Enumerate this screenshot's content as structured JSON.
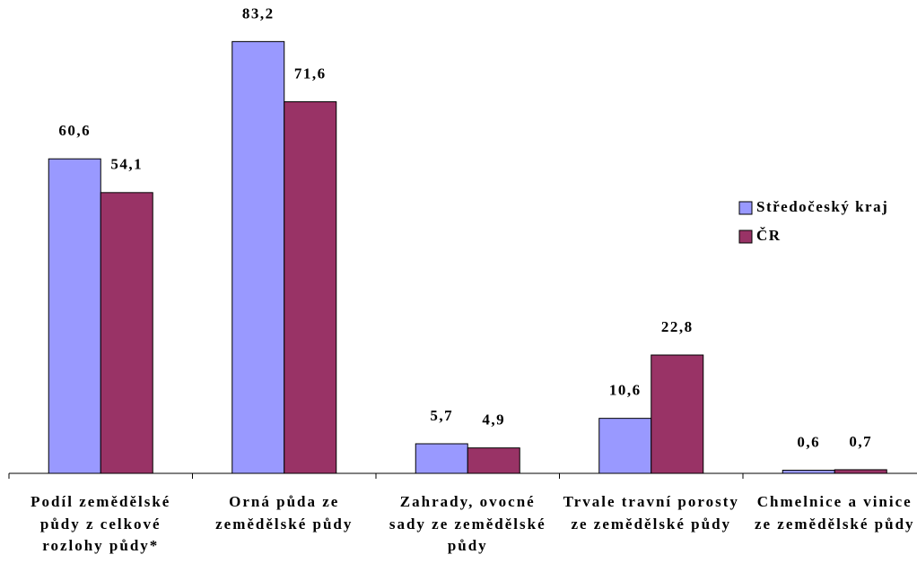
{
  "chart_data": {
    "type": "bar",
    "categories": [
      "Podíl zemědělské půdy z celkové rozlohy půdy*",
      "Orná půda ze zemědělské půdy",
      "Zahrady, ovocné sady ze zemědělské půdy",
      "Trvale travní porosty ze zemědělské půdy",
      "Chmelnice a vinice ze zemědělské půdy"
    ],
    "series": [
      {
        "name": "Středočeský kraj",
        "color": "#9999ff",
        "values": [
          60.6,
          83.2,
          5.7,
          10.6,
          0.6
        ],
        "value_labels": [
          "60,6",
          "83,2",
          "5,7",
          "10,6",
          "0,6"
        ]
      },
      {
        "name": "ČR",
        "color": "#993366",
        "values": [
          54.1,
          71.6,
          4.9,
          22.8,
          0.7
        ],
        "value_labels": [
          "54,1",
          "71,6",
          "4,9",
          "22,8",
          "0,7"
        ]
      }
    ],
    "ylim": [
      0,
      90
    ],
    "legend": "right"
  }
}
